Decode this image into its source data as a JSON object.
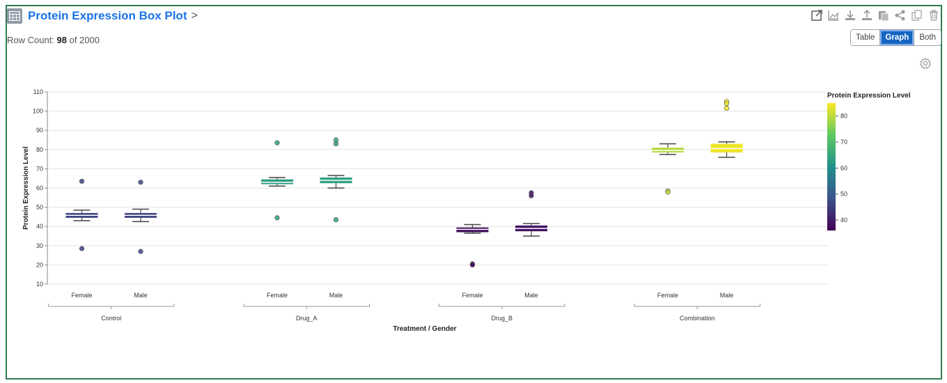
{
  "panel": {
    "title": "Protein Expression Box Plot",
    "chevron": ">",
    "row_count_label": "Row Count:",
    "row_count": "98",
    "row_count_of": "of 2000"
  },
  "toolbar": {
    "icons": [
      "open-in-new-icon",
      "area-chart-icon",
      "download-icon",
      "upload-icon",
      "copy-to-clipboard-icon",
      "share-icon",
      "duplicate-icon",
      "trash-icon"
    ]
  },
  "view_toggle": {
    "options": [
      "Table",
      "Graph",
      "Both"
    ],
    "selected": "Graph"
  },
  "chart_data": {
    "type": "box",
    "xlabel": "Treatment / Gender",
    "ylabel": "Protein Expression Level",
    "ylim": [
      10,
      110
    ],
    "yticks": [
      10,
      20,
      30,
      40,
      50,
      60,
      70,
      80,
      90,
      100,
      110
    ],
    "grid": true,
    "groups": [
      {
        "name": "Control",
        "boxes": [
          {
            "label": "Female",
            "min": 43,
            "q1": 44.5,
            "median": 45.8,
            "q3": 47,
            "max": 48.5,
            "outliers": [
              63.5,
              28.5
            ],
            "color_value": 46
          },
          {
            "label": "Male",
            "min": 42.5,
            "q1": 44.5,
            "median": 45.8,
            "q3": 47,
            "max": 49,
            "outliers": [
              63,
              27
            ],
            "color_value": 46
          }
        ]
      },
      {
        "name": "Drug_A",
        "boxes": [
          {
            "label": "Female",
            "min": 61,
            "q1": 62,
            "median": 63,
            "q3": 64.5,
            "max": 65.5,
            "outliers": [
              83.5,
              44.5
            ],
            "color_value": 63
          },
          {
            "label": "Male",
            "min": 60,
            "q1": 62.5,
            "median": 64,
            "q3": 65.5,
            "max": 66.5,
            "outliers": [
              85,
              83,
              43.5
            ],
            "color_value": 64
          }
        ]
      },
      {
        "name": "Drug_B",
        "boxes": [
          {
            "label": "Female",
            "min": 36.5,
            "q1": 37,
            "median": 38.5,
            "q3": 39.5,
            "max": 41,
            "outliers": [
              20.5,
              20
            ],
            "color_value": 38
          },
          {
            "label": "Male",
            "min": 35,
            "q1": 37.5,
            "median": 39,
            "q3": 40.5,
            "max": 41.5,
            "outliers": [
              57.5,
              56
            ],
            "color_value": 39
          }
        ]
      },
      {
        "name": "Combination",
        "boxes": [
          {
            "label": "Female",
            "min": 77.5,
            "q1": 78.5,
            "median": 79.5,
            "q3": 81,
            "max": 83,
            "outliers": [
              58.5,
              57.8
            ],
            "color_value": 79.5
          },
          {
            "label": "Male",
            "min": 76,
            "q1": 78.5,
            "median": 80.5,
            "q3": 83,
            "max": 84,
            "outliers": [
              105,
              104,
              101.5
            ],
            "color_value": 84
          }
        ]
      }
    ],
    "legend": {
      "title": "Protein Expression Level",
      "ticks": [
        40,
        50,
        60,
        70,
        80
      ],
      "range": [
        36,
        85
      ],
      "colors": [
        "#440154",
        "#3b528b",
        "#21918c",
        "#5ec962",
        "#fde725"
      ],
      "position": "right"
    }
  }
}
